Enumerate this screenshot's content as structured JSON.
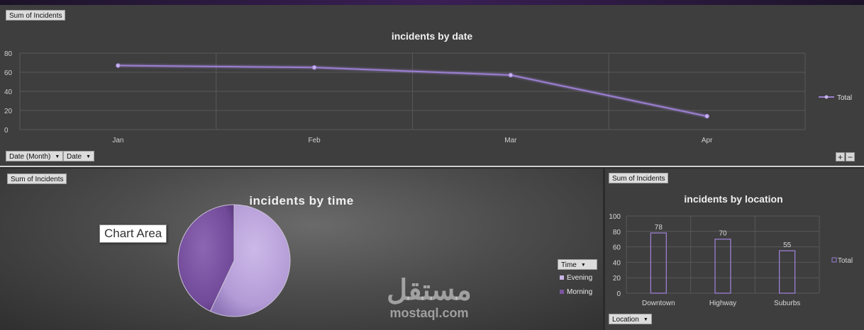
{
  "colors": {
    "accent": "#9b7fd1",
    "pie_light": "#b9a3d8",
    "pie_dark": "#7b559f"
  },
  "top_panel": {
    "field_button": "Sum of Incidents",
    "filter_buttons": [
      "Date (Month)",
      "Date"
    ],
    "zoom": {
      "plus": "+",
      "minus": "−"
    }
  },
  "left_panel": {
    "field_button": "Sum of Incidents",
    "tooltip": "Chart Area",
    "legend_filter": "Time"
  },
  "right_panel": {
    "field_button": "Sum of Incidents",
    "filter_button": "Location"
  },
  "watermark": {
    "arabic": "مستقل",
    "latin": "mostaql.com"
  },
  "chart_data": [
    {
      "type": "line",
      "title": "incidents by date",
      "categories": [
        "Jan",
        "Feb",
        "Mar",
        "Apr"
      ],
      "series": [
        {
          "name": "Total",
          "values": [
            67,
            65,
            57,
            14
          ]
        }
      ],
      "ylim": [
        0,
        80
      ],
      "yticks": [
        0,
        20,
        40,
        60,
        80
      ],
      "grid": true,
      "legend": "right"
    },
    {
      "type": "pie",
      "title": "incidents by time",
      "labels": [
        "Evening",
        "Morning"
      ],
      "values": [
        57,
        43
      ],
      "legend": "right"
    },
    {
      "type": "bar",
      "title": "incidents by location",
      "categories": [
        "Downtown",
        "Highway",
        "Suburbs"
      ],
      "series": [
        {
          "name": "Total",
          "values": [
            78,
            70,
            55
          ]
        }
      ],
      "ylim": [
        0,
        100
      ],
      "yticks": [
        0,
        20,
        40,
        60,
        80,
        100
      ],
      "grid": true,
      "legend": "right"
    }
  ]
}
